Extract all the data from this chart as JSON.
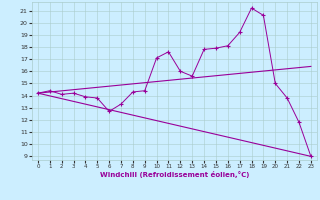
{
  "x": [
    0,
    1,
    2,
    3,
    4,
    5,
    6,
    7,
    8,
    9,
    10,
    11,
    12,
    13,
    14,
    15,
    16,
    17,
    18,
    19,
    20,
    21,
    22,
    23
  ],
  "line1": [
    14.2,
    14.4,
    14.1,
    14.2,
    13.9,
    13.8,
    12.7,
    13.3,
    14.3,
    14.4,
    17.1,
    17.6,
    16.0,
    15.6,
    17.8,
    17.9,
    18.1,
    19.2,
    21.2,
    20.6,
    15.0,
    13.8,
    11.8,
    9.0
  ],
  "trend_up": {
    "x": [
      0,
      23
    ],
    "y": [
      14.2,
      16.4
    ]
  },
  "trend_down": {
    "x": [
      0,
      23
    ],
    "y": [
      14.2,
      9.0
    ]
  },
  "xlabel": "Windchill (Refroidissement éolien,°C)",
  "color": "#990099",
  "bg_color": "#cceeff",
  "grid_color": "#aacccc",
  "ylim": [
    8.7,
    21.7
  ],
  "xlim": [
    -0.5,
    23.5
  ],
  "yticks": [
    9,
    10,
    11,
    12,
    13,
    14,
    15,
    16,
    17,
    18,
    19,
    20,
    21
  ],
  "xticks": [
    0,
    1,
    2,
    3,
    4,
    5,
    6,
    7,
    8,
    9,
    10,
    11,
    12,
    13,
    14,
    15,
    16,
    17,
    18,
    19,
    20,
    21,
    22,
    23
  ]
}
